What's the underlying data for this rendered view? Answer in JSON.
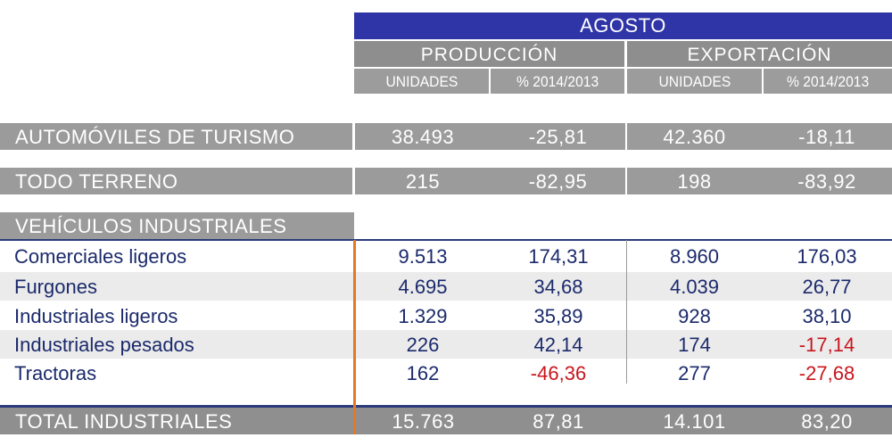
{
  "header": {
    "month": "AGOSTO",
    "groups": [
      "PRODUCCIÓN",
      "EXPORTACIÓN"
    ],
    "subcolumns": [
      "UNIDADES",
      "% 2014/2013",
      "UNIDADES",
      "% 2014/2013"
    ]
  },
  "rows": {
    "turismo": {
      "label": "AUTOMÓVILES DE TURISMO",
      "values": [
        "38.493",
        "-25,81",
        "42.360",
        "-18,11"
      ]
    },
    "todo_terreno": {
      "label": "TODO TERRENO",
      "values": [
        "215",
        "-82,95",
        "198",
        "-83,92"
      ]
    },
    "industriales_heading": {
      "label": "VEHÍCULOS INDUSTRIALES"
    },
    "industriales": [
      {
        "label": "Comerciales ligeros",
        "values": [
          "9.513",
          "174,31",
          "8.960",
          "176,03"
        ]
      },
      {
        "label": "Furgones",
        "values": [
          "4.695",
          "34,68",
          "4.039",
          "26,77"
        ]
      },
      {
        "label": "Industriales ligeros",
        "values": [
          "1.329",
          "35,89",
          "928",
          "38,10"
        ]
      },
      {
        "label": "Industriales pesados",
        "values": [
          "226",
          "42,14",
          "174",
          "-17,14"
        ]
      },
      {
        "label": "Tractoras",
        "values": [
          "162",
          "-46,36",
          "277",
          "-27,68"
        ]
      }
    ],
    "total": {
      "label": "TOTAL INDUSTRIALES",
      "values": [
        "15.763",
        "87,81",
        "14.101",
        "83,20"
      ]
    }
  },
  "colors": {
    "header_blue": "#2f35a6",
    "bar_gray": "#9b9b9b",
    "text_navy": "#1b2a6b",
    "negative_red": "#c8161d",
    "divider_orange": "#e87722"
  }
}
